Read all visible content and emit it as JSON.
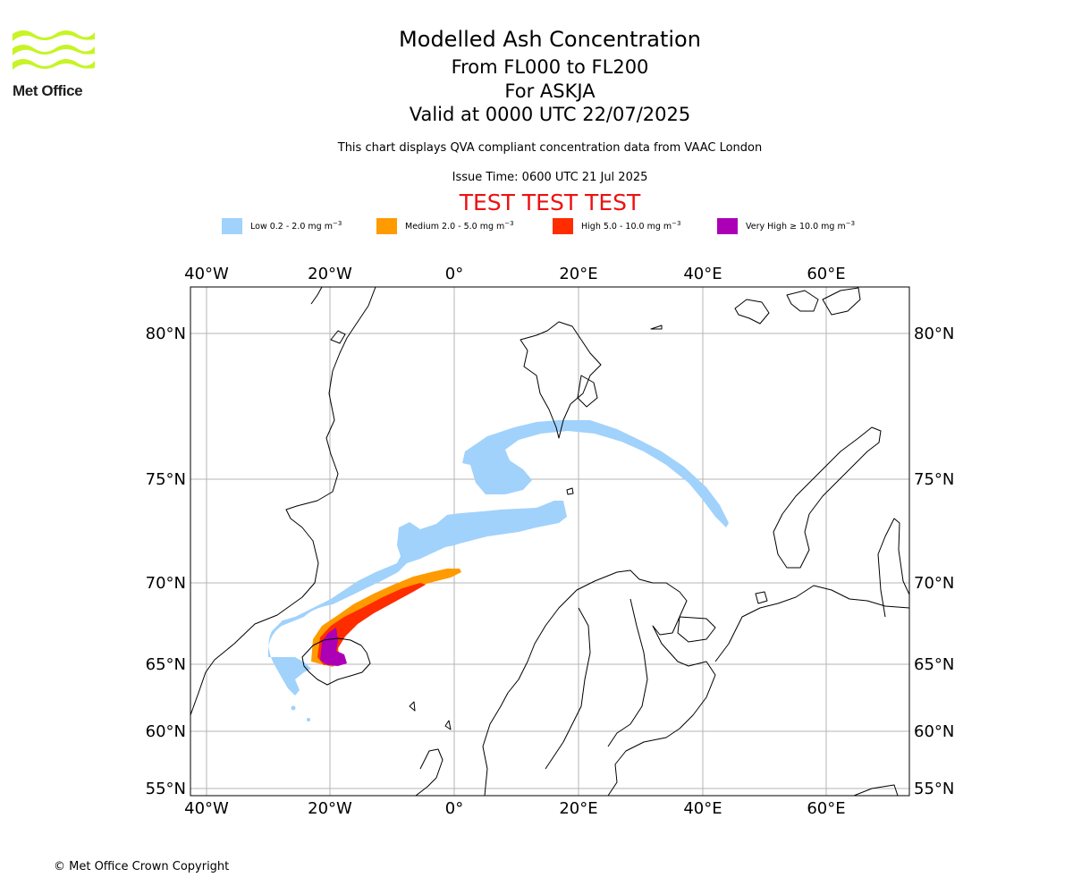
{
  "header": {
    "logo_text": "Met Office",
    "title": "Modelled Ash Concentration",
    "level_range": "From FL000 to FL200",
    "volcano": "For ASKJA",
    "valid_time": "Valid at 0000 UTC 22/07/2025",
    "subtitle": "This chart displays QVA compliant concentration data from VAAC London",
    "issue_time": "Issue Time: 0600 UTC 21 Jul 2025",
    "test_banner": "TEST TEST TEST"
  },
  "legend": [
    {
      "label": "Low 0.2 - 2.0 mg m",
      "unit_exp": "−3",
      "color": "#a0d2fb"
    },
    {
      "label": "Medium 2.0 - 5.0 mg m",
      "unit_exp": "−3",
      "color": "#ff9a00"
    },
    {
      "label": "High 5.0 - 10.0 mg m",
      "unit_exp": "−3",
      "color": "#ff2c00"
    },
    {
      "label": "Very High  ≥  10.0 mg m",
      "unit_exp": "−3",
      "color": "#ac00b6"
    }
  ],
  "map": {
    "lon_labels": [
      "40°W",
      "20°W",
      "0°",
      "20°E",
      "40°E",
      "60°E"
    ],
    "lat_labels": [
      "80°N",
      "75°N",
      "70°N",
      "65°N",
      "60°N",
      "55°N"
    ],
    "colors": {
      "low": "#a0d2fb",
      "medium": "#ff9a00",
      "high": "#ff2c00",
      "very_high": "#ac00b6",
      "grid": "#b4b4b4",
      "coast": "#000000"
    }
  },
  "footer": {
    "copyright": "© Met Office Crown Copyright"
  }
}
